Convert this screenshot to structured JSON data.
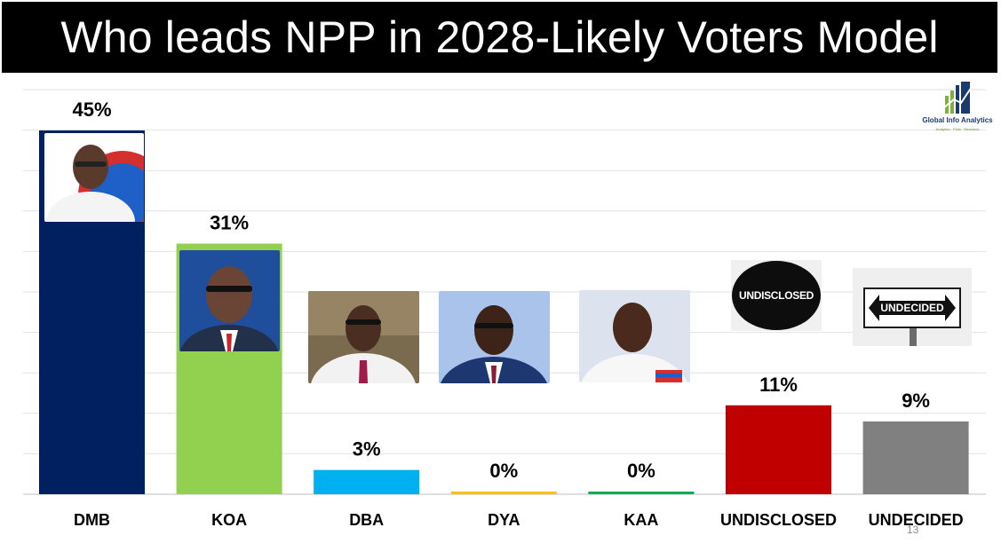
{
  "title": "Who leads NPP in 2028-Likely Voters Model",
  "logo": {
    "brand": "Global Info Analytics",
    "tagline": "Analytics · Polls · Research"
  },
  "page_number": "13",
  "badges": {
    "undisclosed": "UNDISCLOSED",
    "undecided": "UNDECIDED"
  },
  "colors": {
    "DMB": "#002060",
    "KOA": "#92D050",
    "DBA": "#00B0F0",
    "DYA": "#FFC000",
    "KAA": "#00B050",
    "UNDISCLOSED": "#C00000",
    "UNDECIDED": "#808080"
  },
  "chart_data": {
    "type": "bar",
    "title": "Who leads NPP in 2028-Likely Voters Model",
    "categories": [
      "DMB",
      "KOA",
      "DBA",
      "DYA",
      "KAA",
      "UNDISCLOSED",
      "UNDECIDED"
    ],
    "values": [
      45,
      31,
      3,
      0,
      0,
      11,
      9
    ],
    "data_labels": [
      "45%",
      "31%",
      "3%",
      "0%",
      "0%",
      "11%",
      "9%"
    ],
    "unit": "%",
    "ylim": [
      0,
      45
    ],
    "gridlines": true,
    "legend": "none",
    "xlabel": "",
    "ylabel": ""
  }
}
